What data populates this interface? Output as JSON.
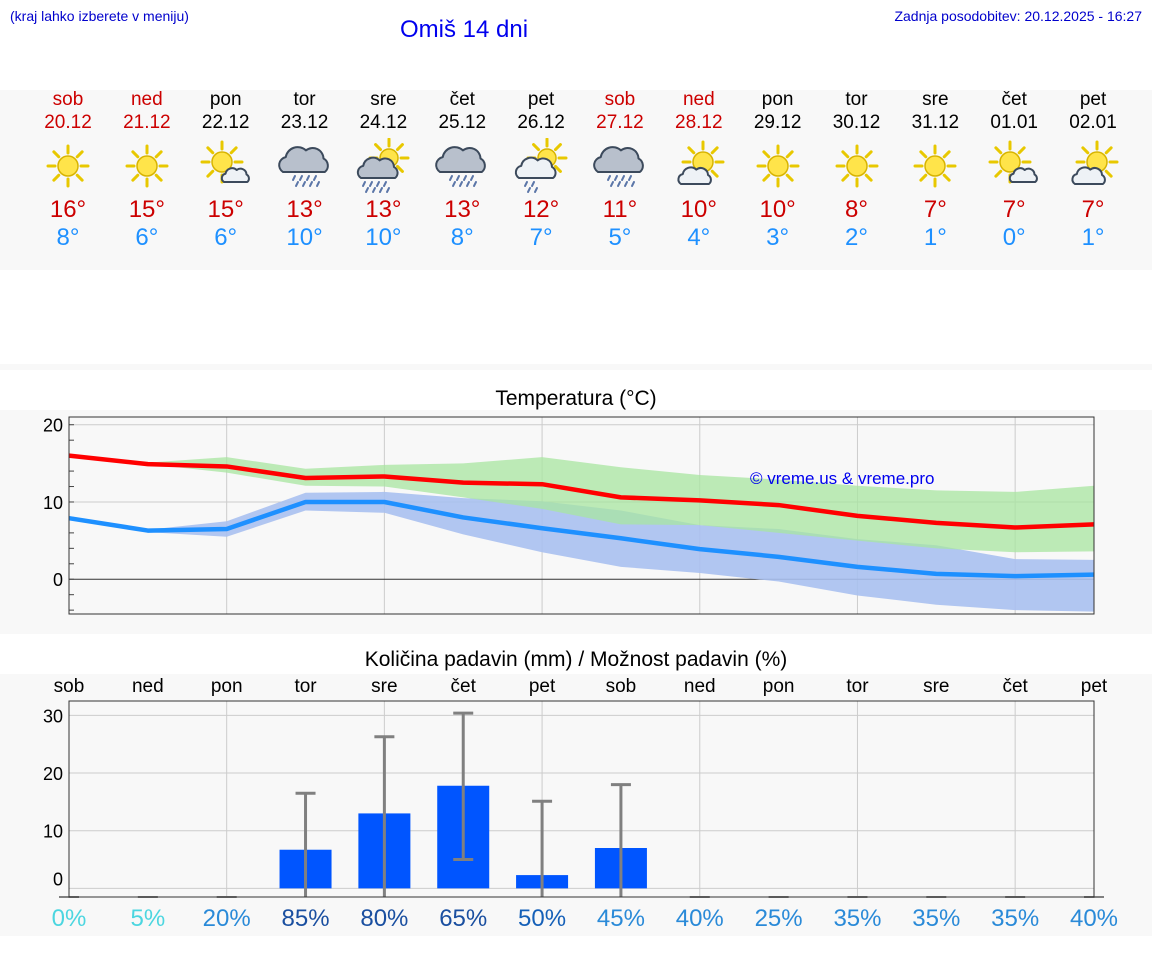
{
  "header": {
    "hint": "(kraj lahko izberete v meniju)",
    "title": "Omiš 14 dni",
    "updated": "Zadnja posodobitev: 20.12.2025 - 16:27"
  },
  "days": [
    {
      "name": "sob",
      "date": "20.12",
      "weekend": true,
      "icon": "sun-icon",
      "tmax": "16°",
      "tmin": "8°"
    },
    {
      "name": "ned",
      "date": "21.12",
      "weekend": true,
      "icon": "sun-icon",
      "tmax": "15°",
      "tmin": "6°"
    },
    {
      "name": "pon",
      "date": "22.12",
      "weekend": false,
      "icon": "sun-small-cloud-icon",
      "tmax": "15°",
      "tmin": "6°"
    },
    {
      "name": "tor",
      "date": "23.12",
      "weekend": false,
      "icon": "cloud-rain-icon",
      "tmax": "13°",
      "tmin": "10°"
    },
    {
      "name": "sre",
      "date": "24.12",
      "weekend": false,
      "icon": "sun-cloud-rain-icon",
      "tmax": "13°",
      "tmin": "10°"
    },
    {
      "name": "čet",
      "date": "25.12",
      "weekend": false,
      "icon": "cloud-rain-icon",
      "tmax": "13°",
      "tmin": "8°"
    },
    {
      "name": "pet",
      "date": "26.12",
      "weekend": false,
      "icon": "sun-cloud-light-rain-icon",
      "tmax": "12°",
      "tmin": "7°"
    },
    {
      "name": "sob",
      "date": "27.12",
      "weekend": true,
      "icon": "cloud-rain-icon",
      "tmax": "11°",
      "tmin": "5°"
    },
    {
      "name": "ned",
      "date": "28.12",
      "weekend": true,
      "icon": "sun-cloud-icon",
      "tmax": "10°",
      "tmin": "4°"
    },
    {
      "name": "pon",
      "date": "29.12",
      "weekend": false,
      "icon": "sun-icon",
      "tmax": "10°",
      "tmin": "3°"
    },
    {
      "name": "tor",
      "date": "30.12",
      "weekend": false,
      "icon": "sun-icon",
      "tmax": "8°",
      "tmin": "2°"
    },
    {
      "name": "sre",
      "date": "31.12",
      "weekend": false,
      "icon": "sun-icon",
      "tmax": "7°",
      "tmin": "1°"
    },
    {
      "name": "čet",
      "date": "01.01",
      "weekend": false,
      "icon": "sun-small-cloud-icon",
      "tmax": "7°",
      "tmin": "0°"
    },
    {
      "name": "pet",
      "date": "02.01",
      "weekend": false,
      "icon": "sun-cloud-icon",
      "tmax": "7°",
      "tmin": "1°"
    }
  ],
  "colors": {
    "max": "#ff0000",
    "min": "#1e90ff",
    "max_band": "#a8e6a0",
    "min_band": "#a8c0f0",
    "overlap": "#7cc0a0",
    "bar": "#0055ff",
    "whisker": "#808080",
    "weekend": "#cc0000"
  },
  "chart_data": [
    {
      "type": "line",
      "title": "Temperatura (°C)",
      "watermark": "© vreme.us & vreme.pro",
      "ylim": [
        -4.5,
        21
      ],
      "yticks": [
        0,
        10,
        20
      ],
      "x": [
        0,
        1,
        2,
        3,
        4,
        5,
        6,
        7,
        8,
        9,
        10,
        11,
        12,
        13
      ],
      "series": [
        {
          "name": "max",
          "values": [
            16.0,
            14.9,
            14.6,
            13.1,
            13.3,
            12.5,
            12.3,
            10.6,
            10.2,
            9.6,
            8.2,
            7.3,
            6.7,
            7.1
          ],
          "band_low": [
            16.0,
            14.9,
            13.8,
            12.1,
            12.0,
            10.6,
            9.1,
            7.1,
            7.0,
            6.0,
            5.0,
            4.0,
            3.5,
            3.6
          ],
          "band_high": [
            16.0,
            15.1,
            15.8,
            14.3,
            14.8,
            15.0,
            15.8,
            14.5,
            13.5,
            12.9,
            12.1,
            11.5,
            11.3,
            12.1
          ]
        },
        {
          "name": "min",
          "values": [
            7.9,
            6.3,
            6.5,
            10.0,
            10.0,
            8.0,
            6.6,
            5.3,
            3.9,
            2.9,
            1.6,
            0.7,
            0.4,
            0.6
          ],
          "band_low": [
            7.9,
            6.1,
            5.5,
            8.9,
            8.6,
            5.8,
            3.5,
            1.6,
            0.8,
            -0.3,
            -2.1,
            -3.3,
            -4.0,
            -4.2
          ],
          "band_high": [
            7.9,
            6.4,
            7.5,
            11.2,
            11.3,
            10.5,
            10.1,
            8.9,
            7.0,
            6.5,
            5.2,
            4.4,
            2.6,
            2.5
          ]
        }
      ]
    },
    {
      "type": "bar",
      "title": "Količina padavin (mm) / Možnost padavin (%)",
      "ylim": [
        -1.5,
        32.5
      ],
      "yticks": [
        0,
        10,
        20,
        30
      ],
      "categories": [
        "sob",
        "ned",
        "pon",
        "tor",
        "sre",
        "čet",
        "pet",
        "sob",
        "ned",
        "pon",
        "tor",
        "sre",
        "čet",
        "pet"
      ],
      "values": [
        0,
        0,
        0,
        6.7,
        13.0,
        17.8,
        2.3,
        7.0,
        0,
        0,
        0,
        0,
        0,
        0
      ],
      "err_low": [
        0,
        0,
        0,
        0,
        0,
        5.0,
        0,
        0,
        0,
        0,
        0,
        0,
        0,
        0
      ],
      "err_high": [
        0,
        0,
        0,
        16.5,
        26.3,
        30.4,
        15.1,
        18.0,
        0,
        0,
        0,
        0,
        0,
        0
      ],
      "probability": [
        "0%",
        "5%",
        "20%",
        "85%",
        "80%",
        "65%",
        "50%",
        "45%",
        "40%",
        "25%",
        "35%",
        "35%",
        "35%",
        "40%"
      ],
      "probability_values": [
        0,
        5,
        20,
        85,
        80,
        65,
        50,
        45,
        40,
        25,
        35,
        35,
        35,
        40
      ]
    }
  ]
}
